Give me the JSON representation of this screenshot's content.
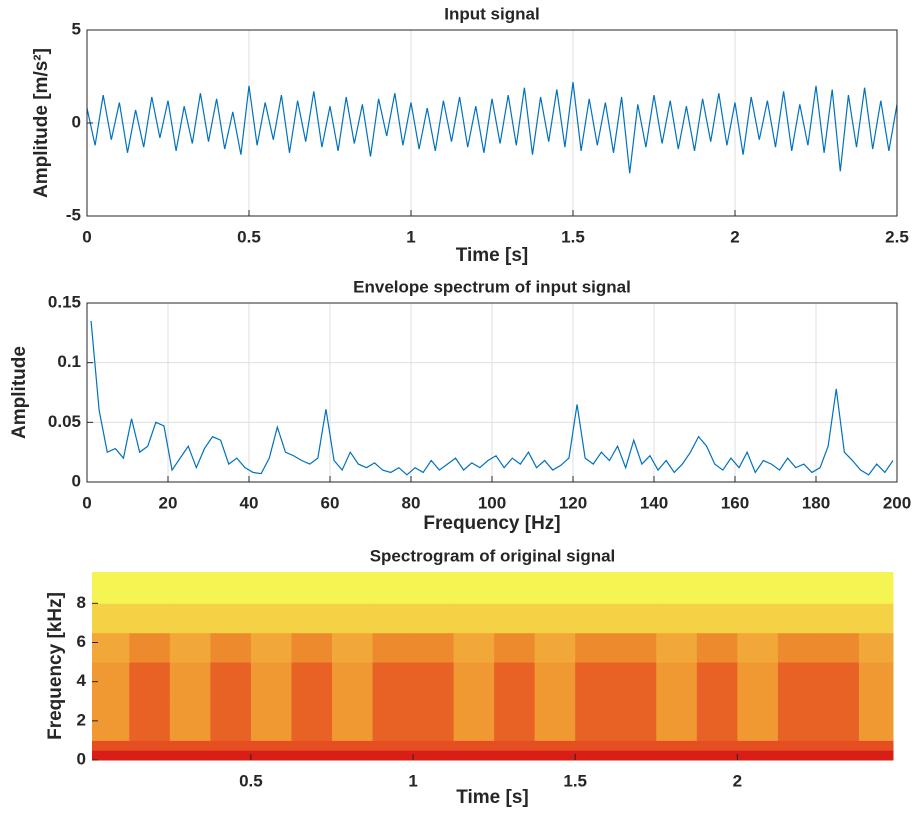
{
  "chart_data": [
    {
      "type": "line",
      "title": "Input signal",
      "xlabel": "Time [s]",
      "ylabel": "Amplitude [m/s²]",
      "color": "#0072bd",
      "grid": true,
      "xlim": [
        0,
        2.5
      ],
      "ylim": [
        -5,
        5
      ],
      "xticks": [
        0,
        0.5,
        1,
        1.5,
        2,
        2.5
      ],
      "yticks": [
        -5,
        0,
        5
      ],
      "x": [
        0,
        0.025,
        0.05,
        0.075,
        0.1,
        0.125,
        0.15,
        0.175,
        0.2,
        0.225,
        0.25,
        0.275,
        0.3,
        0.325,
        0.35,
        0.375,
        0.4,
        0.425,
        0.45,
        0.475,
        0.5,
        0.525,
        0.55,
        0.575,
        0.6,
        0.625,
        0.65,
        0.675,
        0.7,
        0.725,
        0.75,
        0.775,
        0.8,
        0.825,
        0.85,
        0.875,
        0.9,
        0.925,
        0.95,
        0.975,
        1,
        1.025,
        1.05,
        1.075,
        1.1,
        1.125,
        1.15,
        1.175,
        1.2,
        1.225,
        1.25,
        1.275,
        1.3,
        1.325,
        1.35,
        1.375,
        1.4,
        1.425,
        1.45,
        1.475,
        1.5,
        1.525,
        1.55,
        1.575,
        1.6,
        1.625,
        1.65,
        1.675,
        1.7,
        1.725,
        1.75,
        1.775,
        1.8,
        1.825,
        1.85,
        1.875,
        1.9,
        1.925,
        1.95,
        1.975,
        2,
        2.025,
        2.05,
        2.075,
        2.1,
        2.125,
        2.15,
        2.175,
        2.2,
        2.225,
        2.25,
        2.275,
        2.3,
        2.325,
        2.35,
        2.375,
        2.4,
        2.425,
        2.45,
        2.475,
        2.5
      ],
      "values": [
        0.8,
        -1.2,
        1.5,
        -0.9,
        1.1,
        -1.6,
        0.7,
        -1.3,
        1.4,
        -0.8,
        1.2,
        -1.5,
        0.9,
        -1.1,
        1.6,
        -1.0,
        1.3,
        -1.4,
        0.6,
        -1.7,
        2.0,
        -1.2,
        1.1,
        -0.9,
        1.5,
        -1.6,
        1.2,
        -1.0,
        1.7,
        -1.3,
        0.9,
        -1.5,
        1.4,
        -1.1,
        1.0,
        -1.8,
        1.3,
        -0.7,
        1.6,
        -1.2,
        1.1,
        -1.4,
        0.8,
        -1.5,
        1.2,
        -1.0,
        1.4,
        -1.3,
        0.9,
        -1.6,
        1.3,
        -1.1,
        1.5,
        -1.2,
        1.9,
        -1.7,
        1.4,
        -1.0,
        1.8,
        -1.3,
        2.2,
        -1.5,
        1.3,
        -1.2,
        1.1,
        -1.6,
        1.4,
        -2.7,
        1.0,
        -1.3,
        1.5,
        -1.1,
        1.2,
        -1.4,
        0.9,
        -1.5,
        1.3,
        -1.0,
        1.6,
        -1.2,
        1.1,
        -1.7,
        1.4,
        -0.9,
        1.2,
        -1.3,
        1.7,
        -1.5,
        1.0,
        -1.2,
        2.0,
        -1.6,
        1.8,
        -2.6,
        1.5,
        -1.3,
        1.9,
        -1.4,
        1.2,
        -1.5,
        1.0
      ]
    },
    {
      "type": "line",
      "title": "Envelope spectrum of input signal",
      "xlabel": "Frequency [Hz]",
      "ylabel": "Amplitude",
      "color": "#0072bd",
      "grid": true,
      "xlim": [
        0,
        200
      ],
      "ylim": [
        0,
        0.15
      ],
      "xticks": [
        0,
        20,
        40,
        60,
        80,
        100,
        120,
        140,
        160,
        180,
        200
      ],
      "yticks": [
        0,
        0.05,
        0.1,
        0.15
      ],
      "x": [
        1,
        3,
        5,
        7,
        9,
        11,
        13,
        15,
        17,
        19,
        21,
        23,
        25,
        27,
        29,
        31,
        33,
        35,
        37,
        39,
        41,
        43,
        45,
        47,
        49,
        51,
        53,
        55,
        57,
        59,
        61,
        63,
        65,
        67,
        69,
        71,
        73,
        75,
        77,
        79,
        81,
        83,
        85,
        87,
        89,
        91,
        93,
        95,
        97,
        99,
        101,
        103,
        105,
        107,
        109,
        111,
        113,
        115,
        117,
        119,
        121,
        123,
        125,
        127,
        129,
        131,
        133,
        135,
        137,
        139,
        141,
        143,
        145,
        147,
        149,
        151,
        153,
        155,
        157,
        159,
        161,
        163,
        165,
        167,
        169,
        171,
        173,
        175,
        177,
        179,
        181,
        183,
        185,
        187,
        189,
        191,
        193,
        195,
        197,
        199
      ],
      "values": [
        0.135,
        0.06,
        0.025,
        0.028,
        0.02,
        0.053,
        0.025,
        0.03,
        0.05,
        0.047,
        0.01,
        0.02,
        0.03,
        0.012,
        0.028,
        0.038,
        0.035,
        0.015,
        0.02,
        0.012,
        0.008,
        0.007,
        0.02,
        0.046,
        0.025,
        0.022,
        0.018,
        0.015,
        0.02,
        0.061,
        0.018,
        0.01,
        0.025,
        0.015,
        0.012,
        0.016,
        0.01,
        0.008,
        0.012,
        0.006,
        0.012,
        0.008,
        0.018,
        0.01,
        0.015,
        0.02,
        0.01,
        0.016,
        0.012,
        0.018,
        0.022,
        0.012,
        0.02,
        0.015,
        0.025,
        0.012,
        0.018,
        0.01,
        0.014,
        0.02,
        0.065,
        0.02,
        0.015,
        0.025,
        0.018,
        0.03,
        0.012,
        0.035,
        0.015,
        0.022,
        0.01,
        0.018,
        0.008,
        0.015,
        0.025,
        0.038,
        0.03,
        0.015,
        0.01,
        0.02,
        0.012,
        0.025,
        0.008,
        0.018,
        0.015,
        0.01,
        0.02,
        0.012,
        0.015,
        0.008,
        0.012,
        0.03,
        0.078,
        0.025,
        0.018,
        0.01,
        0.006,
        0.015,
        0.008,
        0.018
      ]
    },
    {
      "type": "heatmap",
      "title": "Spectrogram of original signal",
      "xlabel": "Time [s]",
      "ylabel": "Frequency [kHz]",
      "grid": false,
      "xlim": [
        0.01,
        2.48
      ],
      "ylim": [
        0,
        9.6
      ],
      "xticks": [
        0.5,
        1,
        1.5,
        2
      ],
      "yticks": [
        0,
        2,
        4,
        6,
        8
      ],
      "colormap": [
        "#9ee07a",
        "#f4f452",
        "#f5c542",
        "#ee8a2e",
        "#e23a1c",
        "#d41414"
      ],
      "xbins": [
        0.01,
        0.125,
        0.25,
        0.375,
        0.5,
        0.625,
        0.75,
        0.875,
        1,
        1.125,
        1.25,
        1.375,
        1.5,
        1.625,
        1.75,
        1.875,
        2,
        2.125,
        2.25,
        2.375,
        2.48
      ],
      "ybins": [
        0,
        0.5,
        1,
        3,
        5,
        6.5,
        8,
        9.6
      ],
      "z": [
        [
          0.95,
          0.95,
          0.95,
          0.95,
          0.95,
          0.95,
          0.95,
          0.95,
          0.95,
          0.95,
          0.95,
          0.95,
          0.95,
          0.95,
          0.95,
          0.95,
          0.95,
          0.95,
          0.95,
          0.95
        ],
        [
          0.75,
          0.75,
          0.75,
          0.75,
          0.75,
          0.75,
          0.75,
          0.75,
          0.75,
          0.75,
          0.75,
          0.75,
          0.75,
          0.75,
          0.75,
          0.75,
          0.75,
          0.75,
          0.75,
          0.75
        ],
        [
          0.55,
          0.7,
          0.55,
          0.7,
          0.55,
          0.7,
          0.55,
          0.7,
          0.7,
          0.55,
          0.7,
          0.55,
          0.7,
          0.7,
          0.55,
          0.7,
          0.55,
          0.7,
          0.7,
          0.55
        ],
        [
          0.55,
          0.7,
          0.55,
          0.7,
          0.55,
          0.7,
          0.55,
          0.7,
          0.7,
          0.55,
          0.7,
          0.55,
          0.7,
          0.7,
          0.55,
          0.7,
          0.55,
          0.7,
          0.7,
          0.55
        ],
        [
          0.5,
          0.6,
          0.5,
          0.6,
          0.5,
          0.6,
          0.5,
          0.6,
          0.6,
          0.5,
          0.6,
          0.5,
          0.6,
          0.6,
          0.5,
          0.6,
          0.5,
          0.6,
          0.6,
          0.5
        ],
        [
          0.35,
          0.35,
          0.35,
          0.35,
          0.35,
          0.35,
          0.35,
          0.35,
          0.35,
          0.35,
          0.35,
          0.35,
          0.35,
          0.35,
          0.35,
          0.35,
          0.35,
          0.35,
          0.35,
          0.35
        ],
        [
          0.2,
          0.2,
          0.2,
          0.2,
          0.2,
          0.2,
          0.2,
          0.2,
          0.2,
          0.2,
          0.2,
          0.2,
          0.2,
          0.2,
          0.2,
          0.2,
          0.2,
          0.2,
          0.2,
          0.2
        ]
      ]
    }
  ]
}
